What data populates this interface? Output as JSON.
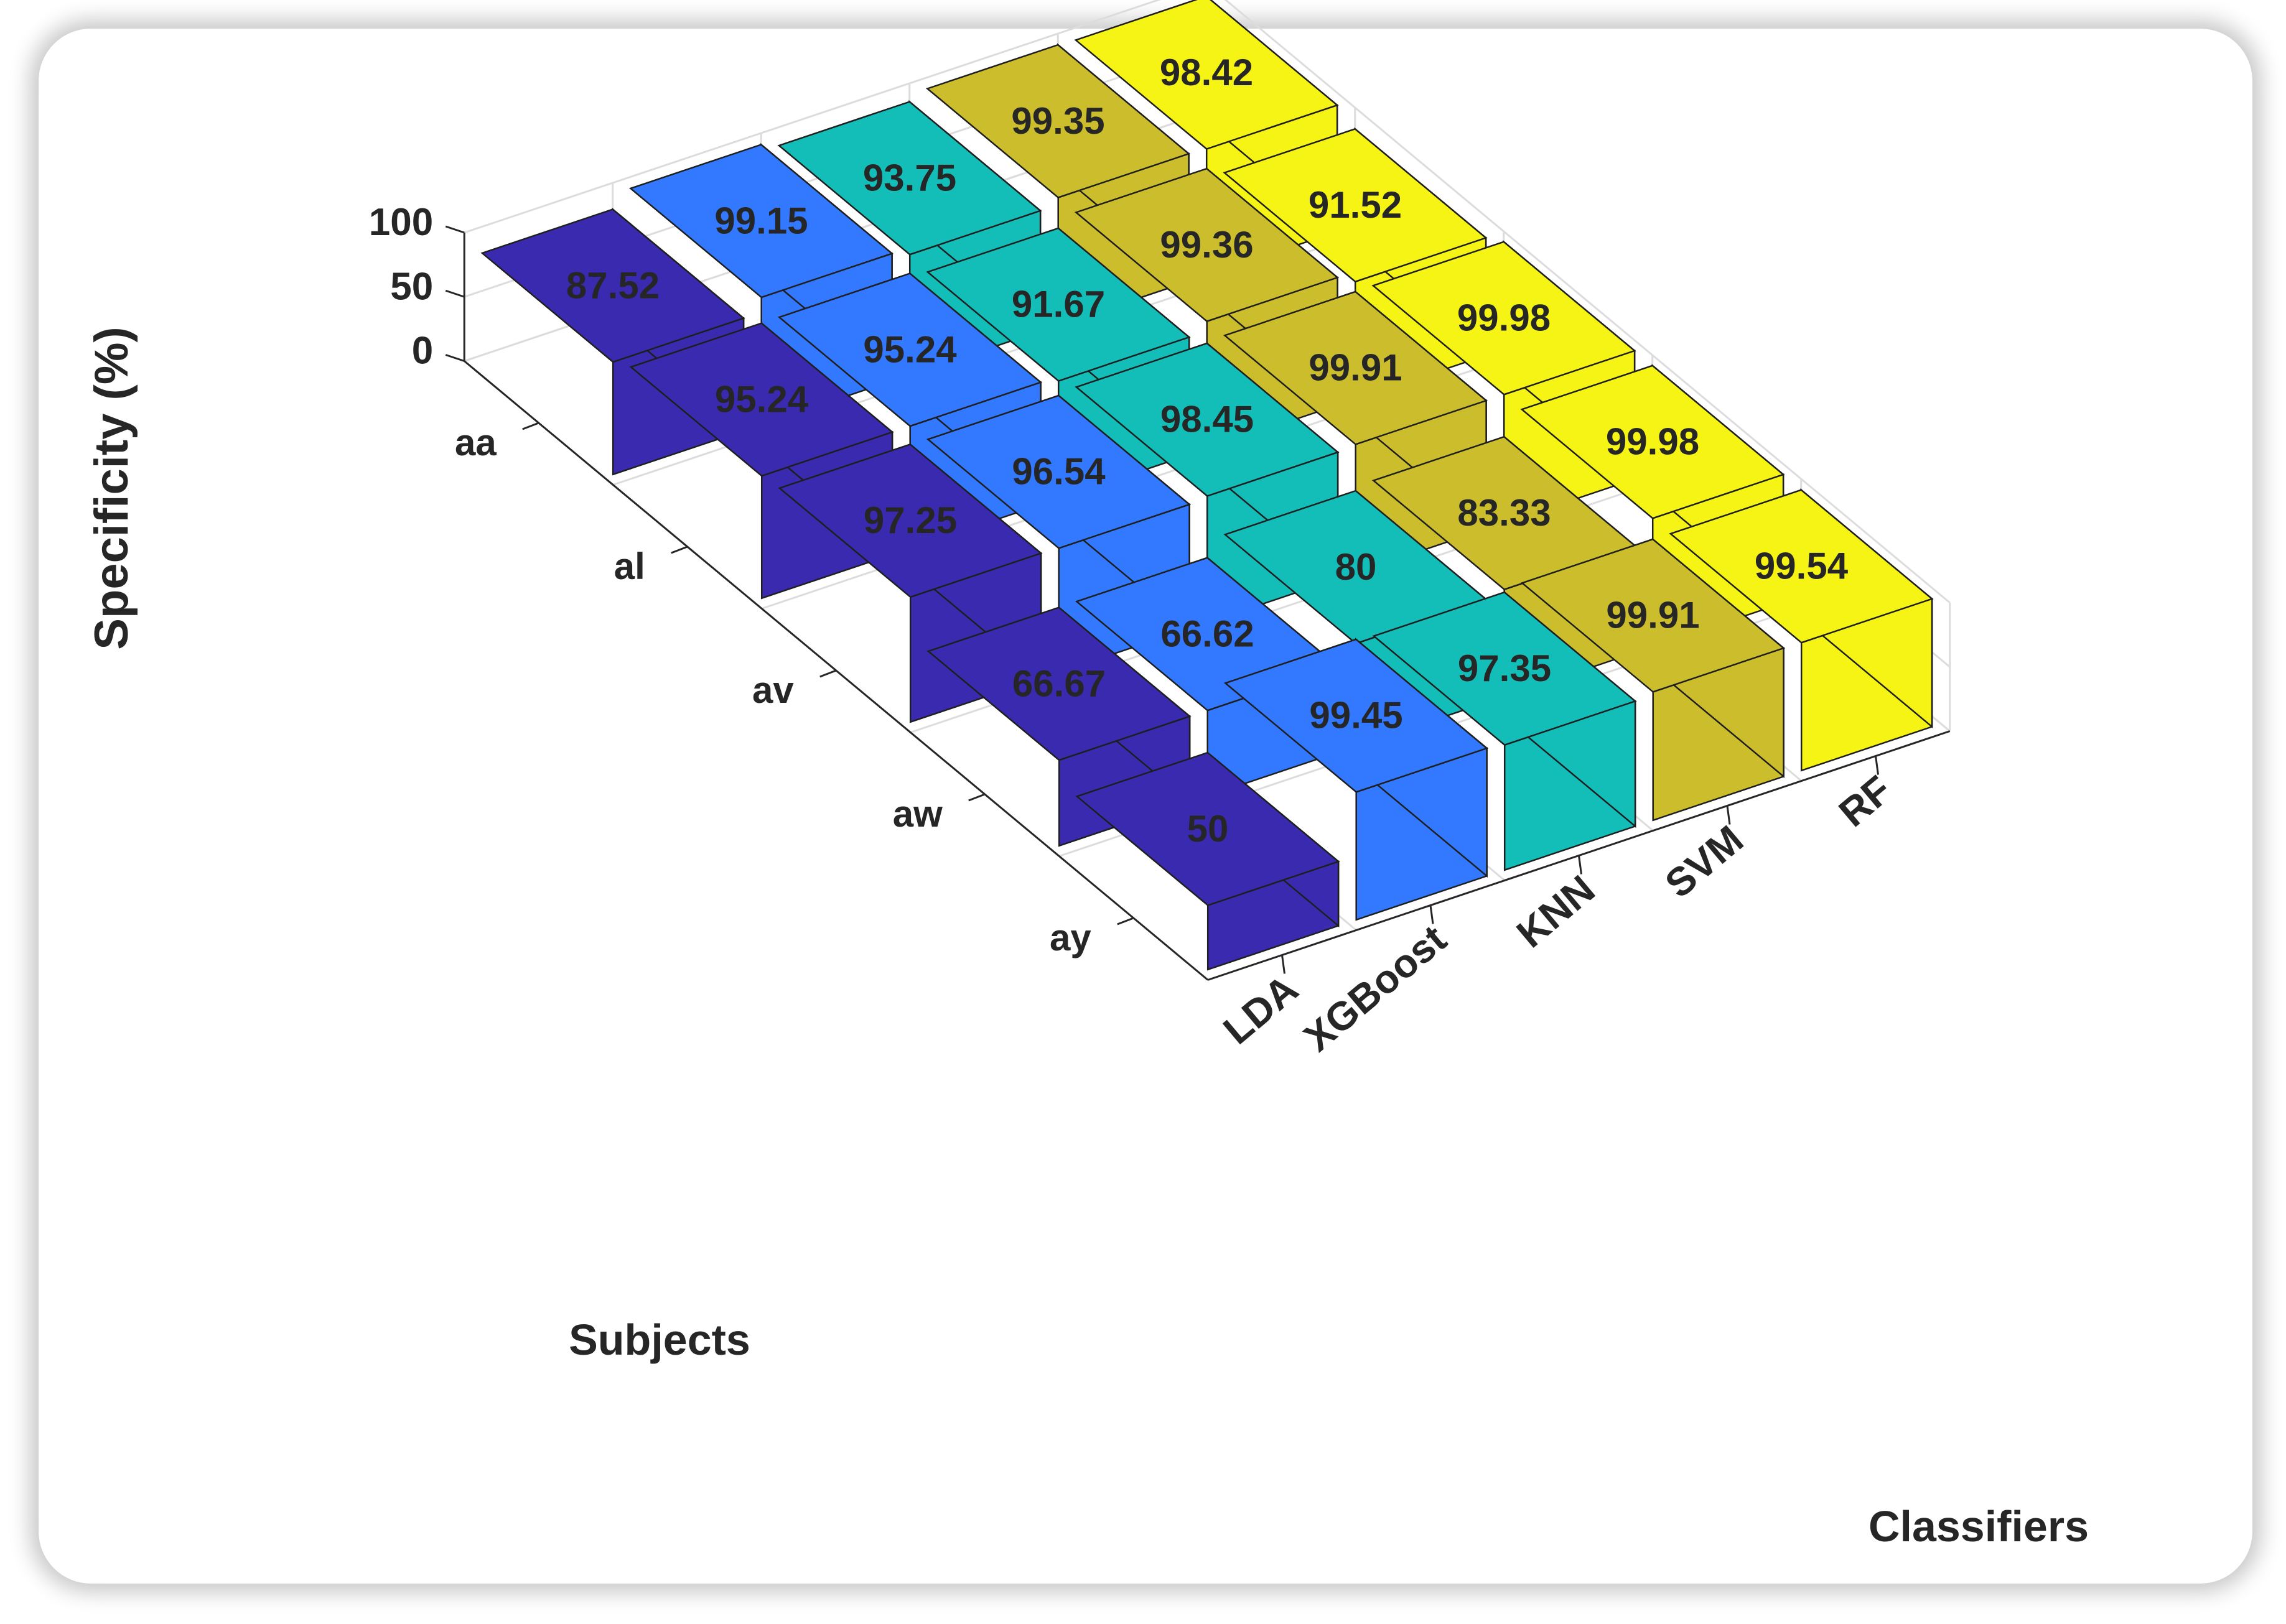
{
  "chart_data": {
    "type": "bar3d",
    "ylabel": "Specificity  (%)",
    "subjects_label": "Subjects",
    "classifiers_label": "Classifiers",
    "zlim": [
      0,
      100
    ],
    "zticks": [
      "0",
      "50",
      "100"
    ],
    "subjects": [
      "aa",
      "al",
      "av",
      "aw",
      "ay"
    ],
    "classifiers": [
      "LDA",
      "XGBoost",
      "KNN",
      "SVM",
      "RF"
    ],
    "colors": [
      "#3a2ab0",
      "#3279ff",
      "#13bdb8",
      "#cbbd2c",
      "#f6f414"
    ],
    "series": [
      {
        "name": "LDA",
        "values": [
          87.52,
          95.24,
          97.25,
          66.67,
          50
        ]
      },
      {
        "name": "XGBoost",
        "values": [
          99.15,
          95.24,
          96.54,
          66.62,
          99.45
        ]
      },
      {
        "name": "KNN",
        "values": [
          93.75,
          91.67,
          98.45,
          80,
          97.35
        ]
      },
      {
        "name": "SVM",
        "values": [
          99.35,
          99.36,
          99.91,
          83.33,
          99.91
        ]
      },
      {
        "name": "RF",
        "values": [
          98.42,
          91.52,
          99.98,
          99.98,
          99.54
        ]
      }
    ],
    "value_labels": [
      [
        "87.52",
        "95.24",
        "97.25",
        "66.67",
        "50"
      ],
      [
        "99.15",
        "95.24",
        "96.54",
        "66.62",
        "99.45"
      ],
      [
        "93.75",
        "91.67",
        "98.45",
        "80",
        "97.35"
      ],
      [
        "99.35",
        "99.36",
        "99.91",
        "83.33",
        "99.91"
      ],
      [
        "98.42",
        "91.52",
        "99.98",
        "99.98",
        "99.54"
      ]
    ],
    "grid": true
  }
}
